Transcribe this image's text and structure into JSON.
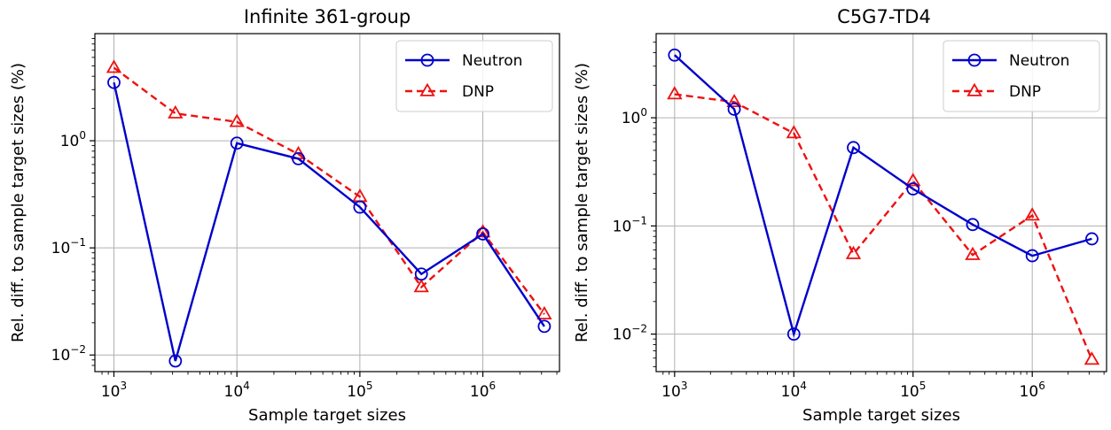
{
  "chart_data": [
    {
      "type": "line",
      "title": "Infinite 361-group",
      "xlabel": "Sample target sizes",
      "ylabel": "Rel. diff. to sample target sizes (%)",
      "xscale": "log",
      "yscale": "log",
      "xlim": [
        700,
        4200000
      ],
      "ylim": [
        0.007,
        10
      ],
      "x_ticks": [
        {
          "value": 1000,
          "base": "10",
          "exp": "3"
        },
        {
          "value": 10000,
          "base": "10",
          "exp": "4"
        },
        {
          "value": 100000,
          "base": "10",
          "exp": "5"
        },
        {
          "value": 1000000,
          "base": "10",
          "exp": "6"
        }
      ],
      "y_ticks": [
        {
          "value": 0.01,
          "base": "10",
          "exp": "−2"
        },
        {
          "value": 0.1,
          "base": "10",
          "exp": "−1"
        },
        {
          "value": 1,
          "base": "10",
          "exp": "0"
        }
      ],
      "grid": true,
      "legend_position": "top-right",
      "x": [
        1000,
        3162,
        10000,
        31623,
        100000,
        316228,
        1000000,
        3162278
      ],
      "series": [
        {
          "name": "Neutron",
          "color": "#0000cc",
          "marker": "circle",
          "linestyle": "solid",
          "values": [
            3.5,
            0.0088,
            0.95,
            0.68,
            0.24,
            0.057,
            0.135,
            0.0185
          ]
        },
        {
          "name": "DNP",
          "color": "#ee1111",
          "marker": "triangle",
          "linestyle": "dashed",
          "values": [
            4.8,
            1.8,
            1.5,
            0.75,
            0.3,
            0.043,
            0.14,
            0.024
          ]
        }
      ]
    },
    {
      "type": "line",
      "title": "C5G7-TD4",
      "xlabel": "Sample target sizes",
      "ylabel": "Rel. diff. to sample target sizes (%)",
      "xscale": "log",
      "yscale": "log",
      "xlim": [
        700,
        4200000
      ],
      "ylim": [
        0.0045,
        6
      ],
      "x_ticks": [
        {
          "value": 1000,
          "base": "10",
          "exp": "3"
        },
        {
          "value": 10000,
          "base": "10",
          "exp": "4"
        },
        {
          "value": 100000,
          "base": "10",
          "exp": "5"
        },
        {
          "value": 1000000,
          "base": "10",
          "exp": "6"
        }
      ],
      "y_ticks": [
        {
          "value": 0.01,
          "base": "10",
          "exp": "−2"
        },
        {
          "value": 0.1,
          "base": "10",
          "exp": "−1"
        },
        {
          "value": 1,
          "base": "10",
          "exp": "0"
        }
      ],
      "grid": true,
      "legend_position": "top-right",
      "x": [
        1000,
        3162,
        10000,
        31623,
        100000,
        316228,
        1000000,
        3162278
      ],
      "series": [
        {
          "name": "Neutron",
          "color": "#0000cc",
          "marker": "circle",
          "linestyle": "solid",
          "values": [
            3.8,
            1.2,
            0.01,
            0.53,
            0.22,
            0.103,
            0.053,
            0.076
          ]
        },
        {
          "name": "DNP",
          "color": "#ee1111",
          "marker": "triangle",
          "linestyle": "dashed",
          "values": [
            1.65,
            1.4,
            0.72,
            0.055,
            0.26,
            0.054,
            0.125,
            0.0058
          ]
        }
      ]
    }
  ]
}
